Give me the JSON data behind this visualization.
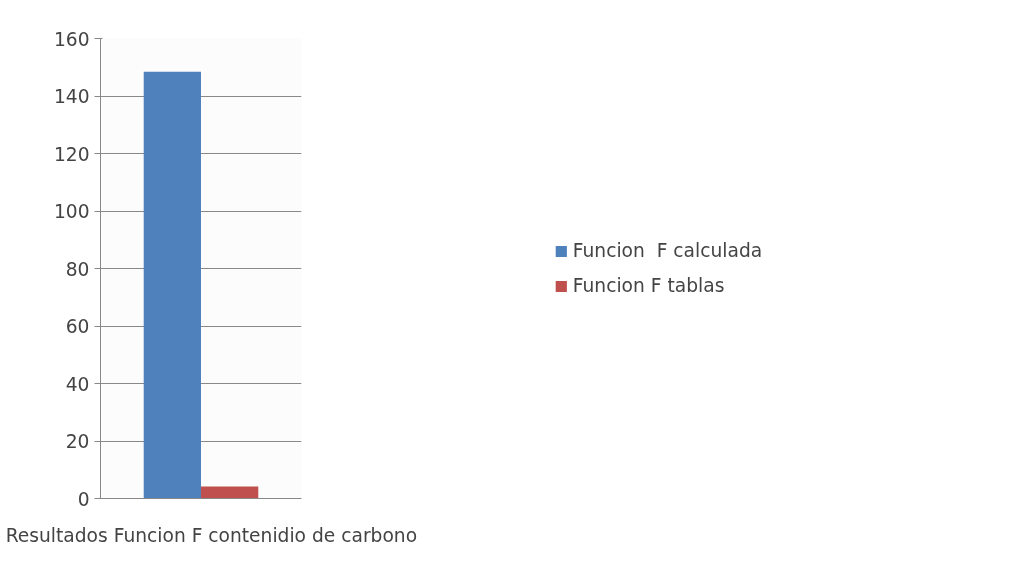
{
  "chart_data": {
    "type": "bar",
    "categories": [
      "Resultados Funcion F contenidio de carbono"
    ],
    "series": [
      {
        "name": "Funcion  F calculada",
        "color": "#4f81bd",
        "values": [
          148.4
        ]
      },
      {
        "name": "Funcion F tablas",
        "color": "#c0504d",
        "values": [
          4.2
        ]
      }
    ],
    "ylim": [
      0,
      160
    ],
    "yticks": [
      0,
      20,
      40,
      60,
      80,
      100,
      120,
      140,
      160
    ],
    "grid": "y",
    "legend": "right"
  }
}
